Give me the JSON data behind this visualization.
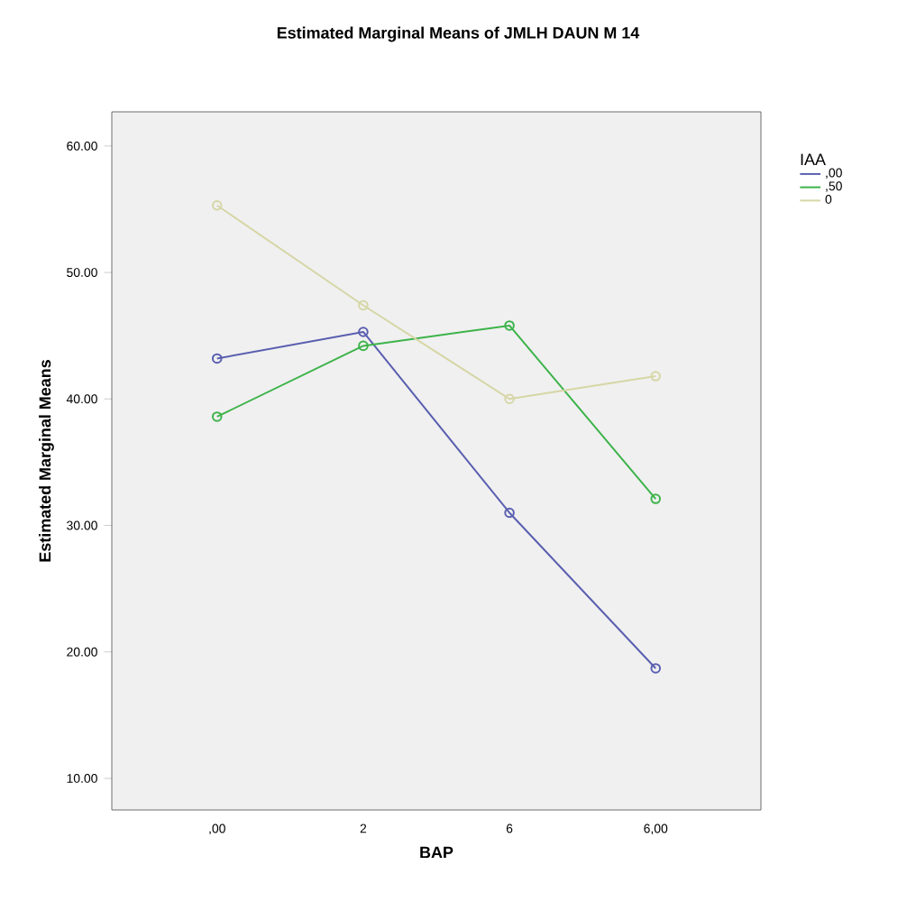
{
  "chart_data": {
    "type": "line",
    "title": "Estimated Marginal Means of JMLH DAUN M 14",
    "xlabel": "BAP",
    "ylabel": "Estimated Marginal Means",
    "legend_title": "IAA",
    "categories": [
      ",00",
      "2",
      "6",
      "6,00"
    ],
    "series": [
      {
        "name": ",00",
        "color": "#5a5fb0",
        "values": [
          43.2,
          45.3,
          31.0,
          18.7
        ]
      },
      {
        "name": ",50",
        "color": "#3db34a",
        "values": [
          38.6,
          44.2,
          45.8,
          32.1
        ]
      },
      {
        "name": "0",
        "color": "#d6d6a6",
        "values": [
          55.3,
          47.4,
          40.0,
          41.8
        ]
      }
    ],
    "ylim": [
      7.5,
      62.7
    ],
    "yticks": [
      {
        "value": 10,
        "label": "10.00"
      },
      {
        "value": 20,
        "label": "20.00"
      },
      {
        "value": 30,
        "label": "30.00"
      },
      {
        "value": 40,
        "label": "40.00"
      },
      {
        "value": 50,
        "label": "50.00"
      },
      {
        "value": 60,
        "label": "60.00"
      }
    ],
    "marker": "circle",
    "line_style": "solid",
    "legend": "top right",
    "grid": false
  }
}
